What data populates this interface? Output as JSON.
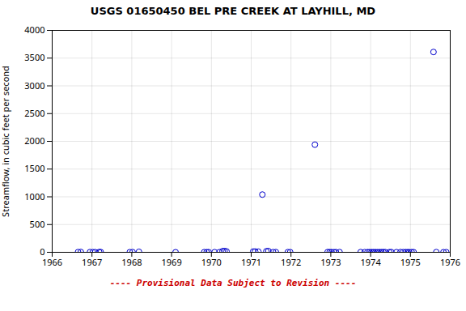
{
  "chart_data": {
    "type": "scatter",
    "title": "USGS 01650450 BEL PRE CREEK AT LAYHILL, MD",
    "ylabel": "Streamflow, in cubic feet per second",
    "x": [
      1966.65,
      1966.72,
      1966.95,
      1967.02,
      1967.08,
      1967.18,
      1967.22,
      1967.95,
      1968.02,
      1968.18,
      1969.1,
      1969.82,
      1969.88,
      1969.93,
      1970.08,
      1970.2,
      1970.28,
      1970.33,
      1970.38,
      1971.05,
      1971.1,
      1971.18,
      1971.28,
      1971.38,
      1971.43,
      1971.55,
      1971.62,
      1971.92,
      1971.98,
      1972.6,
      1972.92,
      1972.97,
      1973.02,
      1973.08,
      1973.13,
      1973.22,
      1973.75,
      1973.85,
      1973.92,
      1973.97,
      1974.02,
      1974.07,
      1974.12,
      1974.17,
      1974.22,
      1974.27,
      1974.32,
      1974.37,
      1974.47,
      1974.52,
      1974.65,
      1974.75,
      1974.82,
      1974.88,
      1974.93,
      1974.97,
      1975.03,
      1975.08,
      1975.58,
      1975.65,
      1975.83,
      1975.9
    ],
    "values": [
      3,
      5,
      3,
      2,
      2,
      4,
      3,
      2,
      3,
      8,
      1,
      2,
      1,
      2,
      2,
      1,
      20,
      22,
      15,
      13,
      14,
      11,
      1040,
      18,
      22,
      2,
      3,
      2,
      2,
      1940,
      3,
      2,
      2,
      1,
      2,
      3,
      3,
      2,
      2,
      1,
      2,
      2,
      2,
      1,
      2,
      2,
      3,
      2,
      2,
      3,
      2,
      3,
      2,
      2,
      1,
      1,
      2,
      2,
      3610,
      3,
      1,
      2
    ],
    "color": "#0000CC",
    "marker": "circle",
    "xlim": [
      1966,
      1976
    ],
    "ylim": [
      0,
      4000
    ],
    "xticks": [
      1966,
      1967,
      1968,
      1969,
      1970,
      1971,
      1972,
      1973,
      1974,
      1975,
      1976
    ],
    "yticks": [
      0,
      500,
      1000,
      1500,
      2000,
      2500,
      3000,
      3500,
      4000
    ],
    "grid": true,
    "annotations": [
      {
        "text": "---- Provisional Data Subject to Revision ----",
        "color": "#cc0000"
      }
    ]
  }
}
